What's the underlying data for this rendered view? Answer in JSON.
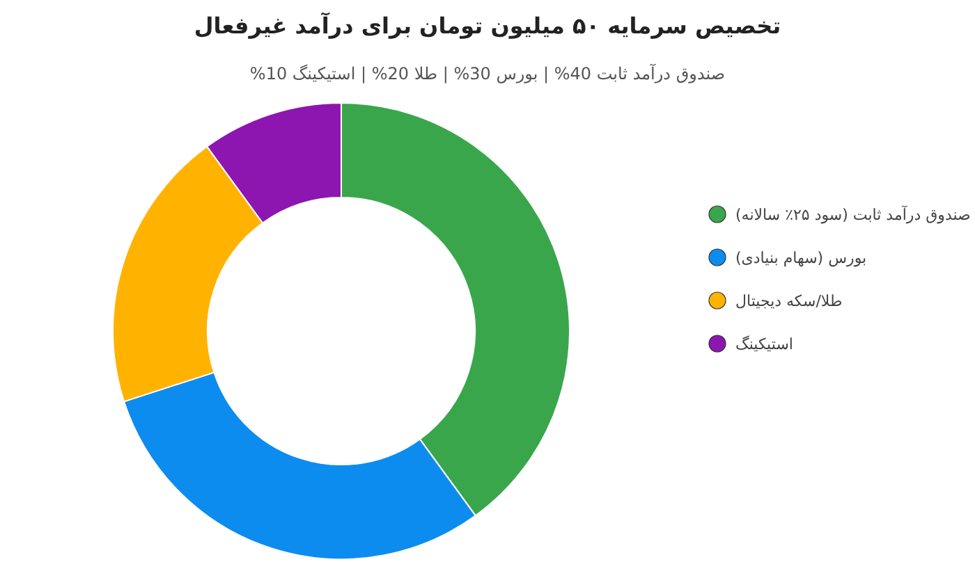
{
  "chart_data": {
    "type": "donut",
    "title": "تخصیص سرمایه ۵۰ میلیون تومان برای درآمد غیرفعال",
    "subtitle": "صندوق درآمد ثابت 40% | بورس 30% | طلا 20% | استیکینگ 10%",
    "categories": [
      "صندوق درآمد ثابت (سود ۲۵٪ سالانه)",
      "بورس (سهام بنیادی)",
      "طلا/سکه دیجیتال",
      "استیکینگ"
    ],
    "values": [
      40,
      30,
      20,
      10
    ],
    "colors": [
      "#3aa64c",
      "#0d8cf0",
      "#ffb300",
      "#8e16b0"
    ],
    "legend": "right"
  }
}
